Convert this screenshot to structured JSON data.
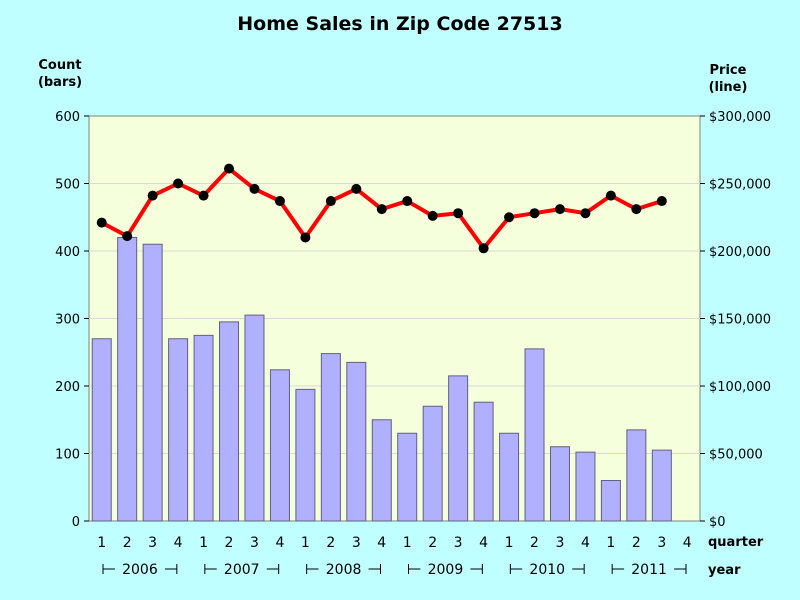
{
  "chart_data": {
    "type": "bar+line",
    "title": "Home Sales in Zip Code 27513",
    "left_axis_label": [
      "Count",
      "(bars)"
    ],
    "right_axis_label": [
      "Price",
      "(line)"
    ],
    "x_inner_label": "quarter",
    "x_outer_label": "year",
    "categories": [
      "1",
      "2",
      "3",
      "4",
      "1",
      "2",
      "3",
      "4",
      "1",
      "2",
      "3",
      "4",
      "1",
      "2",
      "3",
      "4",
      "1",
      "2",
      "3",
      "4",
      "1",
      "2",
      "3",
      "4"
    ],
    "years": [
      {
        "label": "2006"
      },
      {
        "label": "2007"
      },
      {
        "label": "2008"
      },
      {
        "label": "2009"
      },
      {
        "label": "2010"
      },
      {
        "label": "2011"
      }
    ],
    "count_axis": {
      "min": 0,
      "max": 600,
      "ticks": [
        "0",
        "100",
        "200",
        "300",
        "400",
        "500",
        "600"
      ]
    },
    "price_axis": {
      "min": 0,
      "max": 300000,
      "ticks": [
        "$0",
        "$50,000",
        "$100,000",
        "$150,000",
        "$200,000",
        "$250,000",
        "$300,000"
      ]
    },
    "bars": {
      "series": "Count",
      "color": "#b0b0ff",
      "values": [
        270,
        420,
        410,
        270,
        275,
        295,
        305,
        224,
        195,
        248,
        235,
        150,
        130,
        170,
        215,
        176,
        130,
        255,
        110,
        102,
        60,
        135,
        105,
        null
      ]
    },
    "line": {
      "series": "Price",
      "color": "#ff0000",
      "values": [
        221000,
        211000,
        241000,
        250000,
        241000,
        261000,
        246000,
        237000,
        210000,
        237000,
        246000,
        231000,
        237000,
        226000,
        228000,
        202000,
        225000,
        228000,
        231000,
        228000,
        241000,
        231000,
        237000,
        null
      ]
    },
    "plot_background": "#f5ffdc",
    "grid": true
  }
}
